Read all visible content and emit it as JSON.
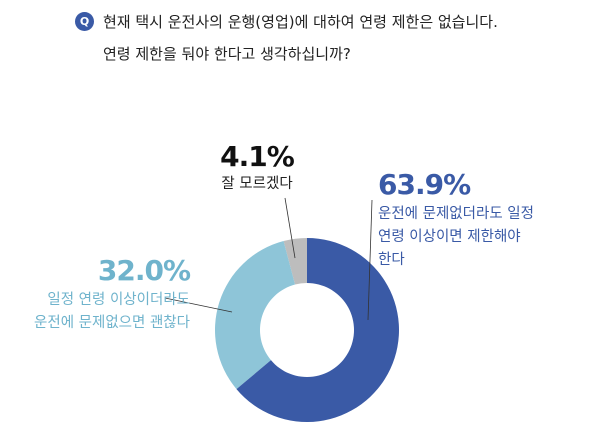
{
  "question": {
    "badge": "Q",
    "lines": [
      "현재 택시 운전사의 운행(영업)에 대하여 연령 제한은 없습니다.",
      "연령 제한을 둬야 한다고 생각하십니까?"
    ]
  },
  "chart_data": {
    "type": "donut",
    "categories": [
      "운전에 문제없더라도 일정 연령 이상이면 제한해야 한다",
      "일정 연령 이상이더라도 운전에 문제없으면 괜찮다",
      "잘 모르겠다"
    ],
    "values": [
      63.9,
      32.0,
      4.1
    ],
    "value_labels": [
      "63.9%",
      "32.0%",
      "4.1%"
    ],
    "colors": [
      "#3a5aa6",
      "#8ec5d8",
      "#bdbdbd"
    ]
  }
}
